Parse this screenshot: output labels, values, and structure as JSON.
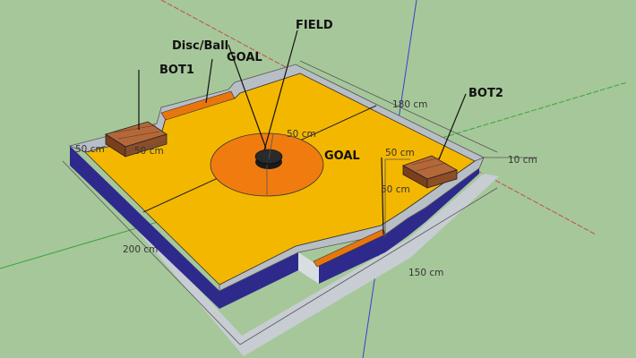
{
  "colors": {
    "background": "#a6c79a",
    "floor": "#f4b700",
    "center_circle": "#f07c10",
    "disc": "#1a1a1a",
    "goal_area": "#e8760c",
    "wall_top": "#b8bec6",
    "wall_side": "#2d2a8c",
    "bot_wood": "#a0582c"
  },
  "labels": {
    "field": "FIELD",
    "disc_ball": "Disc/Ball",
    "goal_top": "GOAL",
    "goal_right": "GOAL",
    "bot1": "BOT1",
    "bot2": "BOT2"
  },
  "dimensions": {
    "length_side": "200 cm",
    "width_side": "150 cm",
    "far_side": "180 cm",
    "wall_thickness": "10 cm",
    "circle_radius": "50 cm",
    "bot1_width": "50 cm",
    "bot1_depth": "50 cm",
    "bot2_width": "50 cm",
    "bot2_depth": "50 cm"
  }
}
